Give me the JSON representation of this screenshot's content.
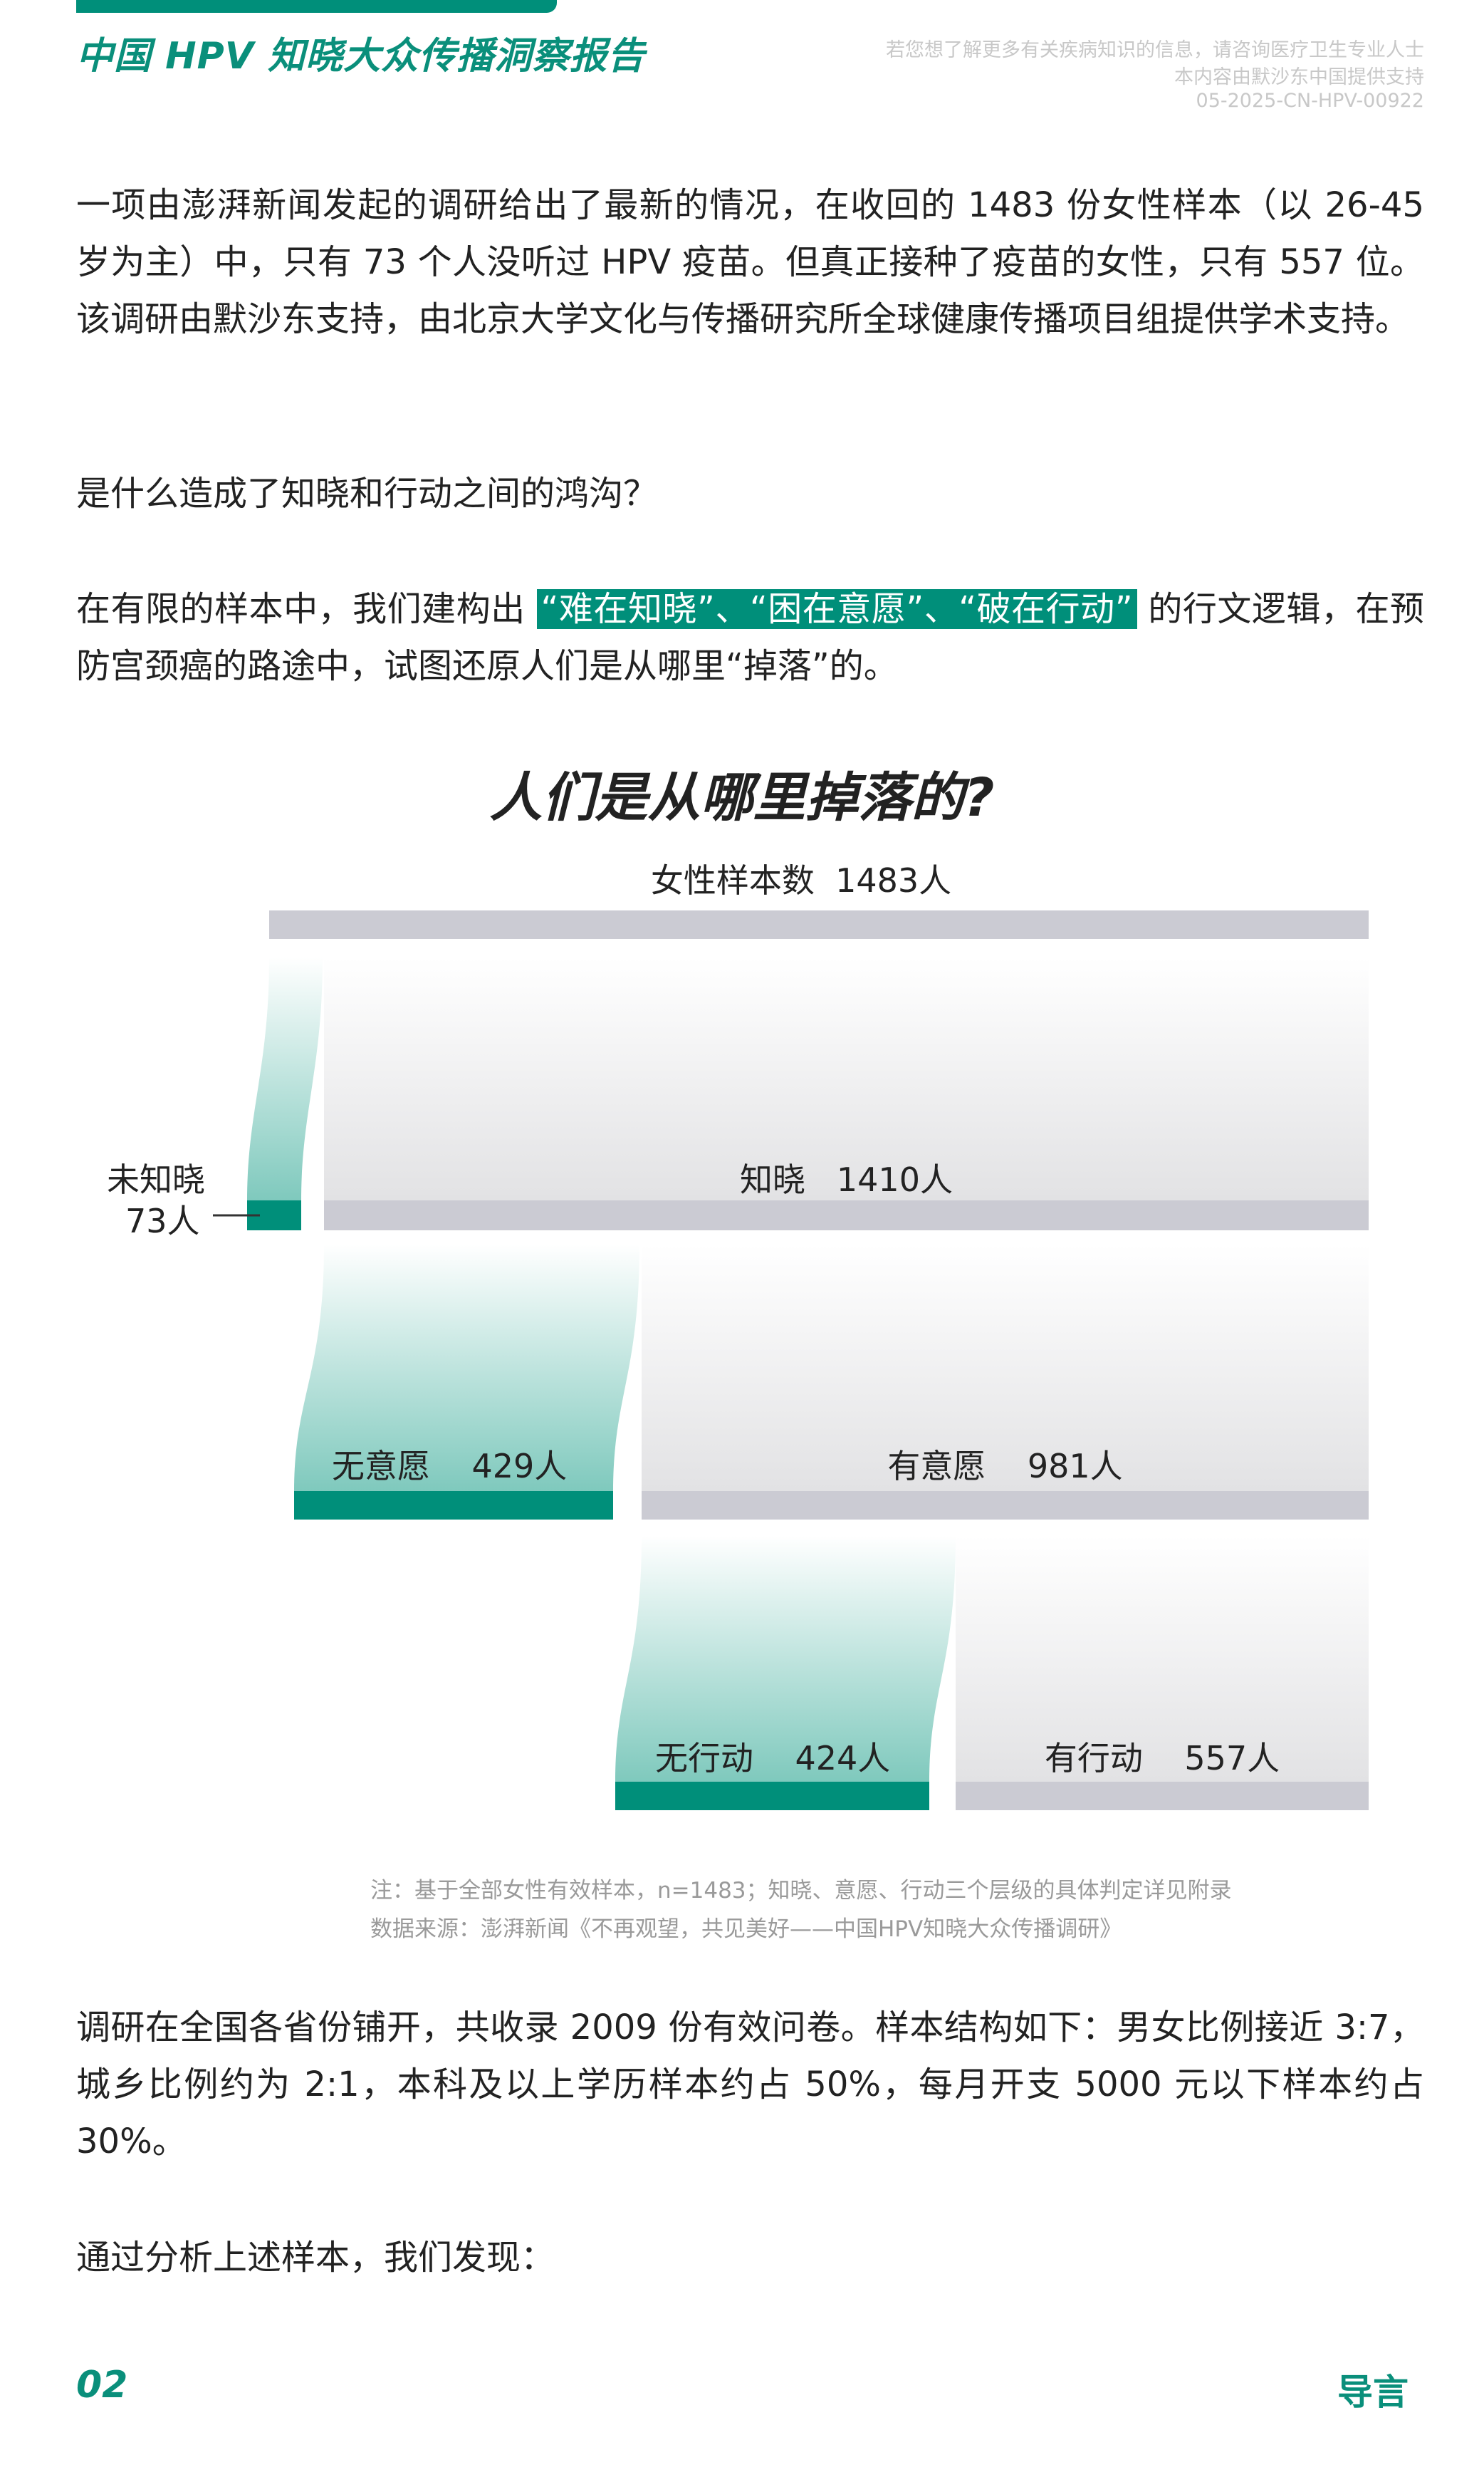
{
  "header": {
    "title": "中国 HPV 知晓大众传播洞察报告",
    "info_lines": [
      "若您想了解更多有关疾病知识的信息，请咨询医疗卫生专业人士",
      "本内容由默沙东中国提供支持",
      "05-2025-CN-HPV-00922"
    ]
  },
  "body": {
    "p1": "一项由澎湃新闻发起的调研给出了最新的情况，在收回的 1483 份女性样本（以 26-45 岁为主）中，只有 73 个人没听过 HPV 疫苗。但真正接种了疫苗的女性，只有 557 位。该调研由默沙东支持，由北京大学文化与传播研究所全球健康传播项目组提供学术支持。",
    "p2": "是什么造成了知晓和行动之间的鸿沟？",
    "p3_before": "在有限的样本中，我们建构出 ",
    "p3_highlight": "“难在知晓”、“困在意愿”、“破在行动”",
    "p3_after": " 的行文逻辑，在预防宫颈癌的路途中，试图还原人们是从哪里“掉落”的。",
    "p4": "调研在全国各省份铺开，共收录 2009 份有效问卷。样本结构如下：男女比例接近 3:7，城乡比例约为 2:1，本科及以上学历样本约占 50%，每月开支 5000 元以下样本约占 30%。",
    "p5": "通过分析上述样本，我们发现："
  },
  "chart_data": {
    "type": "funnel",
    "title": "人们是从哪里掉落的?",
    "total_label": "女性样本数  1483人",
    "total": 1483,
    "stages": [
      {
        "drop_label": "未知晓",
        "drop_value_label": "73人",
        "drop": 73,
        "keep_label": "知晓   1410人",
        "keep": 1410
      },
      {
        "drop_label": "无意愿    429人",
        "drop": 429,
        "keep_label": "有意愿    981人",
        "keep": 981
      },
      {
        "drop_label": "无行动    424人",
        "drop": 424,
        "keep_label": "有行动    557人",
        "keep": 557
      }
    ],
    "colors": {
      "drop": "#008f7a",
      "keep": "#cbcbd3"
    }
  },
  "notes": {
    "note": "注：基于全部女性有效样本，n=1483；知晓、意愿、行动三个层级的具体判定详见附录",
    "source": "数据来源：澎湃新闻《不再观望，共见美好——中国HPV知晓大众传播调研》"
  },
  "footer": {
    "page": "02",
    "section": "导言"
  }
}
